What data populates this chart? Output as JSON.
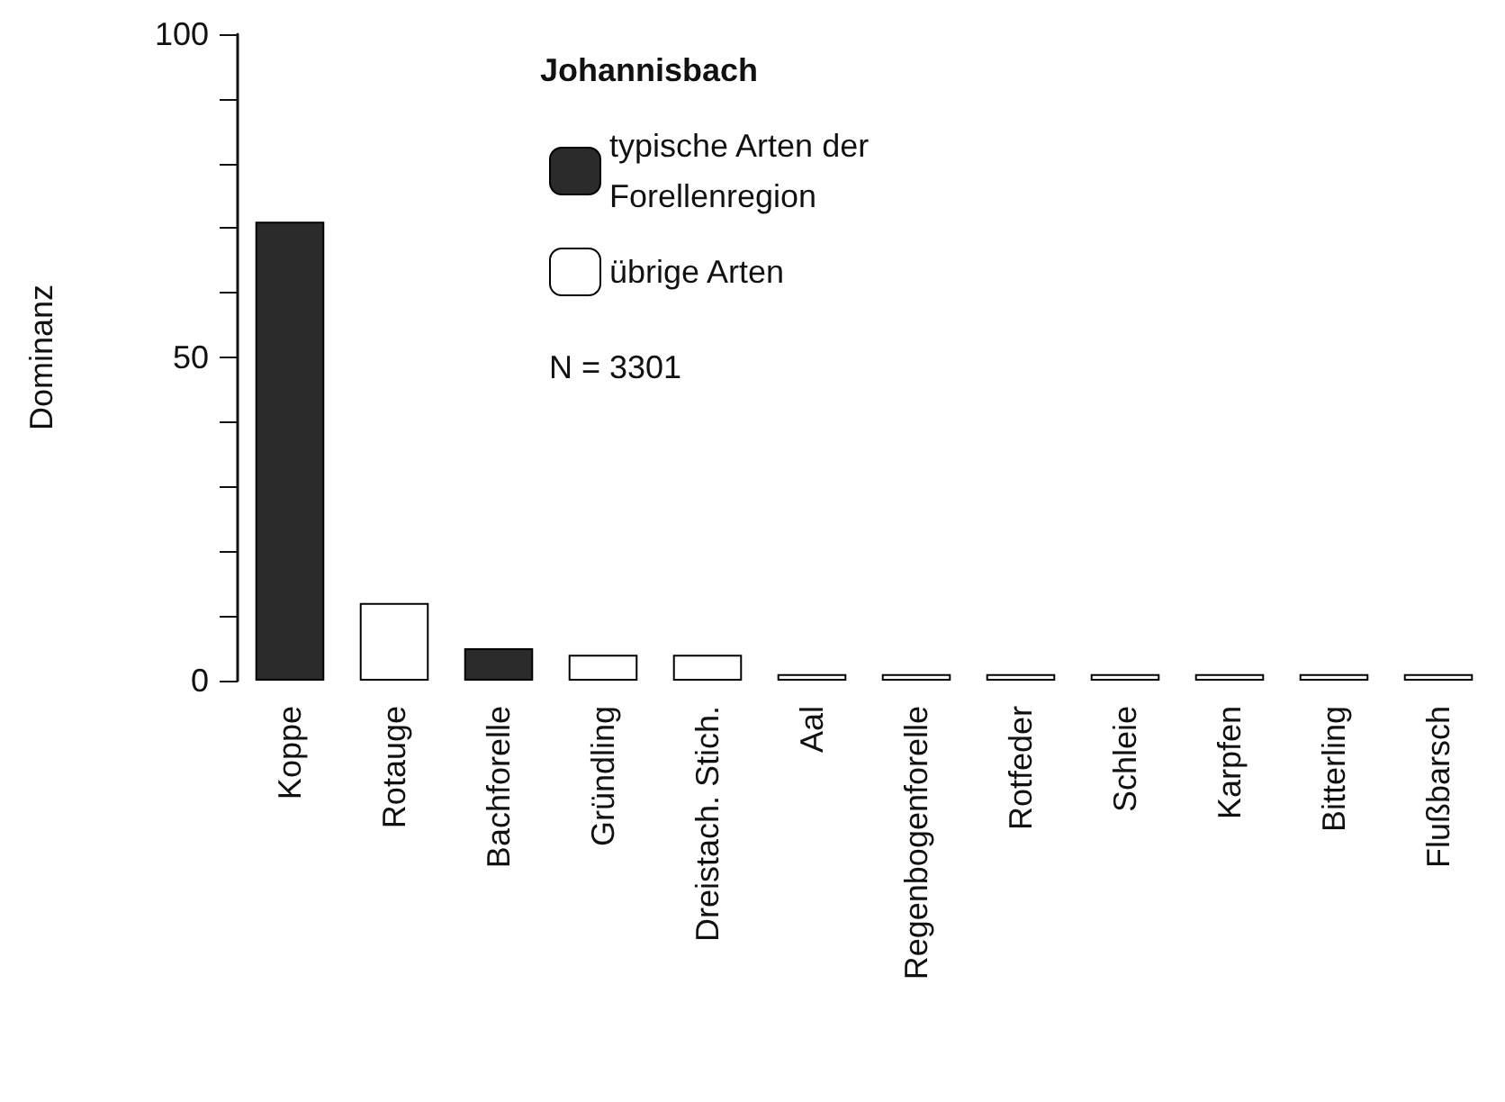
{
  "chart_data": {
    "type": "bar",
    "ylabel": "Dominanz",
    "legend_title": "Johannisbach",
    "annotations": [
      "N = 3301"
    ],
    "categories": [
      "Koppe",
      "Rotauge",
      "Bachforelle",
      "Gründling",
      "Dreistach. Stich.",
      "Aal",
      "Regenbogenforelle",
      "Rotfeder",
      "Schleie",
      "Karpfen",
      "Bitterling",
      "Flußbarsch"
    ],
    "series": [
      {
        "name": "typische Arten der Forellenregion",
        "color": "#2b2b2b",
        "values": [
          71,
          null,
          5,
          null,
          null,
          null,
          null,
          null,
          null,
          null,
          null,
          null
        ]
      },
      {
        "name": "übrige Arten",
        "color": "#ffffff",
        "values": [
          null,
          12,
          null,
          4,
          4,
          1,
          1,
          1,
          1,
          1,
          1,
          1
        ]
      }
    ],
    "stacked": true,
    "ylim": [
      0,
      100
    ],
    "yticks": [
      0,
      {
        "value": 10,
        "label": null
      },
      {
        "value": 20,
        "label": null
      },
      {
        "value": 30,
        "label": null
      },
      {
        "value": 40,
        "label": null
      },
      50,
      {
        "value": 60,
        "label": null
      },
      {
        "value": 70,
        "label": null
      },
      {
        "value": 80,
        "label": null
      },
      {
        "value": 90,
        "label": null
      },
      100
    ],
    "grid": false,
    "legend": "top"
  }
}
